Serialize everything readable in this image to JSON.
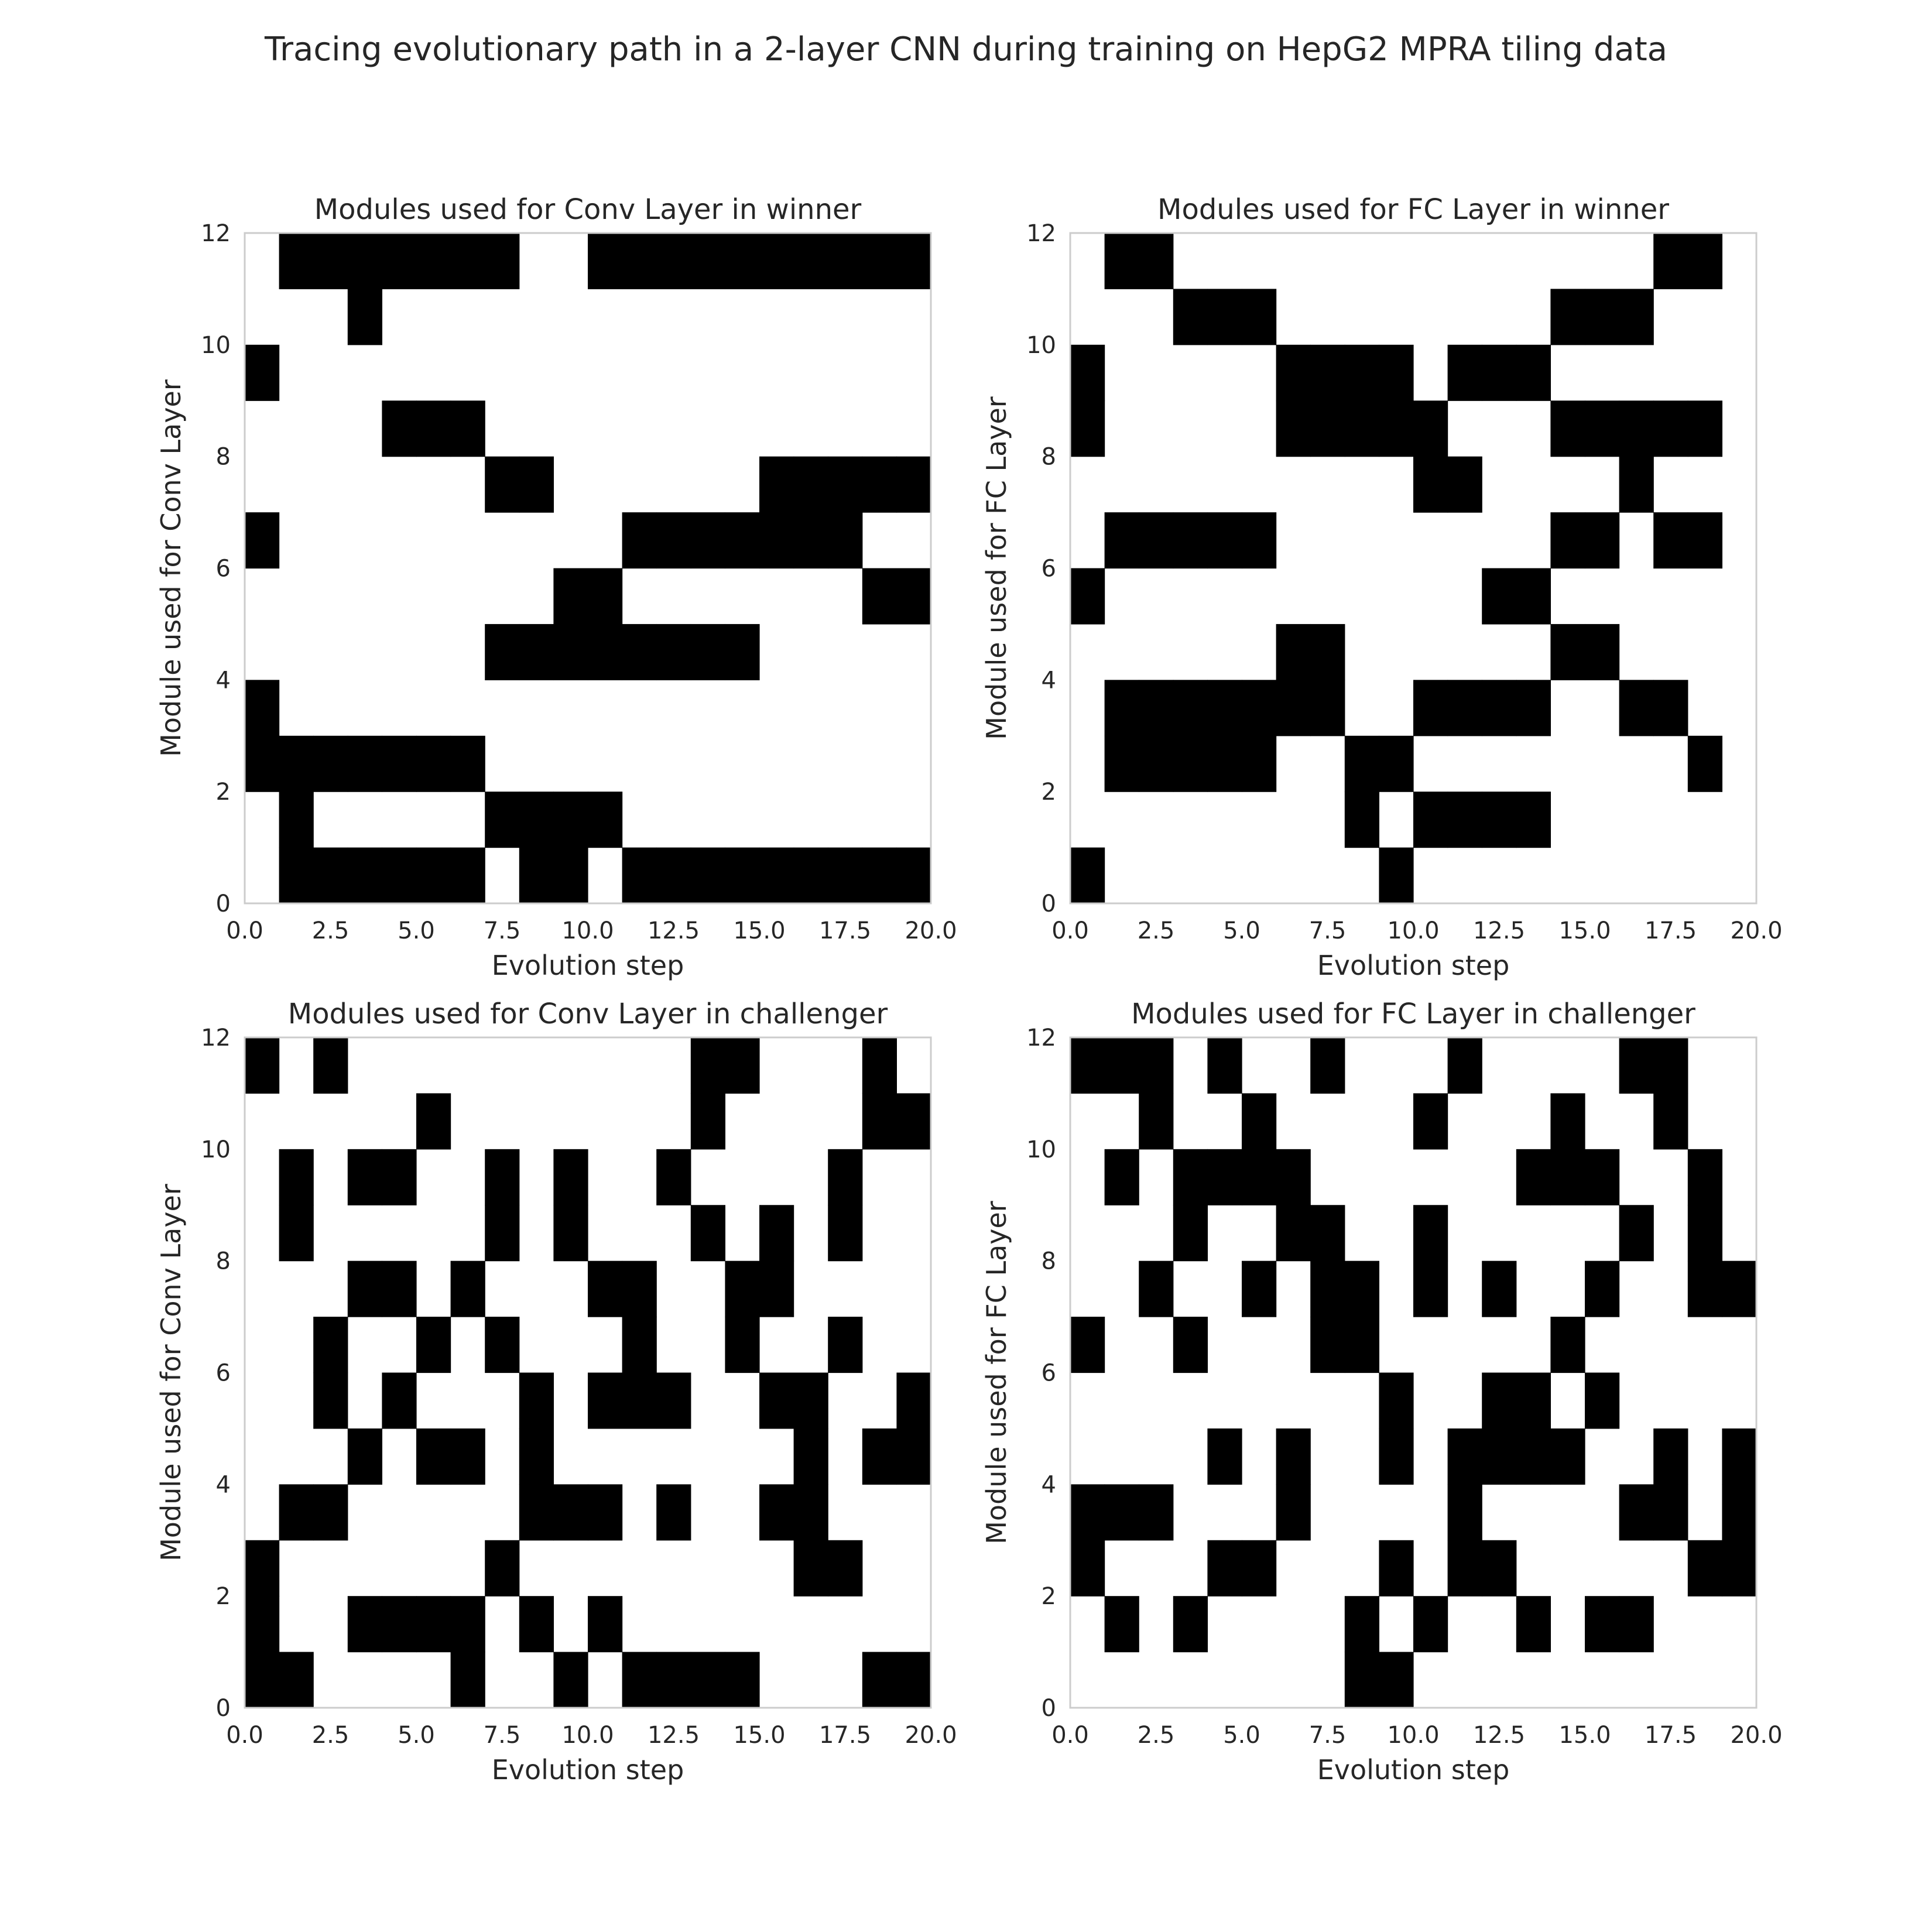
{
  "figure": {
    "title": "Tracing evolutionary path in a 2-layer CNN during training on HepG2 MPRA tiling data"
  },
  "chart_data": [
    {
      "type": "heatmap",
      "title": "Modules used for Conv Layer in winner",
      "xlabel": "Evolution step",
      "ylabel": "Module used for Conv Layer",
      "xlim": [
        0,
        20
      ],
      "ylim": [
        0,
        12
      ],
      "x_ticks": [
        "0.0",
        "2.5",
        "5.0",
        "7.5",
        "10.0",
        "12.5",
        "15.0",
        "17.5",
        "20.0"
      ],
      "y_ticks": [
        "0",
        "2",
        "4",
        "6",
        "8",
        "10",
        "12"
      ],
      "grid": false,
      "colors": {
        "used": "#000000",
        "unused": "#ffffff"
      },
      "cells": [
        [
          0,
          2
        ],
        [
          0,
          3
        ],
        [
          0,
          6
        ],
        [
          0,
          9
        ],
        [
          1,
          0
        ],
        [
          1,
          1
        ],
        [
          1,
          2
        ],
        [
          1,
          11
        ],
        [
          2,
          0
        ],
        [
          2,
          2
        ],
        [
          2,
          11
        ],
        [
          3,
          0
        ],
        [
          3,
          2
        ],
        [
          3,
          10
        ],
        [
          3,
          11
        ],
        [
          4,
          0
        ],
        [
          4,
          2
        ],
        [
          4,
          8
        ],
        [
          4,
          11
        ],
        [
          5,
          0
        ],
        [
          5,
          2
        ],
        [
          5,
          8
        ],
        [
          5,
          11
        ],
        [
          6,
          0
        ],
        [
          6,
          2
        ],
        [
          6,
          8
        ],
        [
          6,
          11
        ],
        [
          7,
          1
        ],
        [
          7,
          4
        ],
        [
          7,
          7
        ],
        [
          7,
          11
        ],
        [
          8,
          0
        ],
        [
          8,
          1
        ],
        [
          8,
          4
        ],
        [
          8,
          7
        ],
        [
          9,
          0
        ],
        [
          9,
          1
        ],
        [
          9,
          4
        ],
        [
          9,
          5
        ],
        [
          10,
          1
        ],
        [
          10,
          4
        ],
        [
          10,
          5
        ],
        [
          10,
          11
        ],
        [
          11,
          0
        ],
        [
          11,
          4
        ],
        [
          11,
          6
        ],
        [
          11,
          11
        ],
        [
          12,
          0
        ],
        [
          12,
          4
        ],
        [
          12,
          6
        ],
        [
          12,
          11
        ],
        [
          13,
          0
        ],
        [
          13,
          4
        ],
        [
          13,
          6
        ],
        [
          13,
          11
        ],
        [
          14,
          0
        ],
        [
          14,
          4
        ],
        [
          14,
          6
        ],
        [
          14,
          11
        ],
        [
          15,
          0
        ],
        [
          15,
          6
        ],
        [
          15,
          7
        ],
        [
          15,
          11
        ],
        [
          16,
          0
        ],
        [
          16,
          6
        ],
        [
          16,
          7
        ],
        [
          16,
          11
        ],
        [
          17,
          0
        ],
        [
          17,
          6
        ],
        [
          17,
          7
        ],
        [
          17,
          11
        ],
        [
          18,
          0
        ],
        [
          18,
          5
        ],
        [
          18,
          7
        ],
        [
          18,
          11
        ],
        [
          19,
          0
        ],
        [
          19,
          5
        ],
        [
          19,
          7
        ],
        [
          19,
          11
        ]
      ]
    },
    {
      "type": "heatmap",
      "title": "Modules used for FC Layer in winner",
      "xlabel": "Evolution step",
      "ylabel": "Module used for FC Layer",
      "xlim": [
        0,
        20
      ],
      "ylim": [
        0,
        12
      ],
      "x_ticks": [
        "0.0",
        "2.5",
        "5.0",
        "7.5",
        "10.0",
        "12.5",
        "15.0",
        "17.5",
        "20.0"
      ],
      "y_ticks": [
        "0",
        "2",
        "4",
        "6",
        "8",
        "10",
        "12"
      ],
      "grid": false,
      "colors": {
        "used": "#000000",
        "unused": "#ffffff"
      },
      "cells": [
        [
          0,
          0
        ],
        [
          0,
          5
        ],
        [
          0,
          8
        ],
        [
          0,
          9
        ],
        [
          1,
          2
        ],
        [
          1,
          3
        ],
        [
          1,
          6
        ],
        [
          1,
          11
        ],
        [
          2,
          2
        ],
        [
          2,
          3
        ],
        [
          2,
          6
        ],
        [
          2,
          11
        ],
        [
          3,
          2
        ],
        [
          3,
          3
        ],
        [
          3,
          6
        ],
        [
          3,
          10
        ],
        [
          4,
          2
        ],
        [
          4,
          3
        ],
        [
          4,
          6
        ],
        [
          4,
          10
        ],
        [
          5,
          2
        ],
        [
          5,
          3
        ],
        [
          5,
          6
        ],
        [
          5,
          10
        ],
        [
          6,
          3
        ],
        [
          6,
          4
        ],
        [
          6,
          8
        ],
        [
          6,
          9
        ],
        [
          7,
          3
        ],
        [
          7,
          4
        ],
        [
          7,
          8
        ],
        [
          7,
          9
        ],
        [
          8,
          1
        ],
        [
          8,
          2
        ],
        [
          8,
          8
        ],
        [
          8,
          9
        ],
        [
          9,
          0
        ],
        [
          9,
          2
        ],
        [
          9,
          8
        ],
        [
          9,
          9
        ],
        [
          10,
          1
        ],
        [
          10,
          3
        ],
        [
          10,
          7
        ],
        [
          10,
          8
        ],
        [
          11,
          1
        ],
        [
          11,
          3
        ],
        [
          11,
          7
        ],
        [
          11,
          9
        ],
        [
          12,
          1
        ],
        [
          12,
          3
        ],
        [
          12,
          5
        ],
        [
          12,
          9
        ],
        [
          13,
          1
        ],
        [
          13,
          3
        ],
        [
          13,
          5
        ],
        [
          13,
          9
        ],
        [
          14,
          4
        ],
        [
          14,
          6
        ],
        [
          14,
          8
        ],
        [
          14,
          10
        ],
        [
          15,
          4
        ],
        [
          15,
          6
        ],
        [
          15,
          8
        ],
        [
          15,
          10
        ],
        [
          16,
          3
        ],
        [
          16,
          7
        ],
        [
          16,
          8
        ],
        [
          16,
          10
        ],
        [
          17,
          3
        ],
        [
          17,
          6
        ],
        [
          17,
          8
        ],
        [
          17,
          11
        ],
        [
          18,
          2
        ],
        [
          18,
          6
        ],
        [
          18,
          8
        ],
        [
          18,
          11
        ]
      ]
    },
    {
      "type": "heatmap",
      "title": "Modules used for Conv Layer in challenger",
      "xlabel": "Evolution step",
      "ylabel": "Module used for Conv Layer",
      "xlim": [
        0,
        20
      ],
      "ylim": [
        0,
        12
      ],
      "x_ticks": [
        "0.0",
        "2.5",
        "5.0",
        "7.5",
        "10.0",
        "12.5",
        "15.0",
        "17.5",
        "20.0"
      ],
      "y_ticks": [
        "0",
        "2",
        "4",
        "6",
        "8",
        "10",
        "12"
      ],
      "grid": false,
      "colors": {
        "used": "#000000",
        "unused": "#ffffff"
      },
      "cells": [
        [
          0,
          0
        ],
        [
          0,
          1
        ],
        [
          0,
          2
        ],
        [
          0,
          11
        ],
        [
          1,
          0
        ],
        [
          1,
          3
        ],
        [
          1,
          8
        ],
        [
          1,
          9
        ],
        [
          2,
          3
        ],
        [
          2,
          5
        ],
        [
          2,
          6
        ],
        [
          2,
          11
        ],
        [
          3,
          1
        ],
        [
          3,
          4
        ],
        [
          3,
          7
        ],
        [
          3,
          9
        ],
        [
          4,
          1
        ],
        [
          4,
          5
        ],
        [
          4,
          7
        ],
        [
          4,
          9
        ],
        [
          5,
          1
        ],
        [
          5,
          4
        ],
        [
          5,
          6
        ],
        [
          5,
          10
        ],
        [
          6,
          0
        ],
        [
          6,
          1
        ],
        [
          6,
          4
        ],
        [
          6,
          7
        ],
        [
          7,
          2
        ],
        [
          7,
          6
        ],
        [
          7,
          8
        ],
        [
          7,
          9
        ],
        [
          8,
          1
        ],
        [
          8,
          3
        ],
        [
          8,
          4
        ],
        [
          8,
          5
        ],
        [
          9,
          0
        ],
        [
          9,
          3
        ],
        [
          9,
          8
        ],
        [
          9,
          9
        ],
        [
          10,
          1
        ],
        [
          10,
          3
        ],
        [
          10,
          5
        ],
        [
          10,
          7
        ],
        [
          11,
          0
        ],
        [
          11,
          5
        ],
        [
          11,
          6
        ],
        [
          11,
          7
        ],
        [
          12,
          0
        ],
        [
          12,
          3
        ],
        [
          12,
          5
        ],
        [
          12,
          9
        ],
        [
          13,
          0
        ],
        [
          13,
          8
        ],
        [
          13,
          10
        ],
        [
          13,
          11
        ],
        [
          14,
          0
        ],
        [
          14,
          6
        ],
        [
          14,
          7
        ],
        [
          14,
          11
        ],
        [
          15,
          3
        ],
        [
          15,
          5
        ],
        [
          15,
          7
        ],
        [
          15,
          8
        ],
        [
          16,
          2
        ],
        [
          16,
          3
        ],
        [
          16,
          4
        ],
        [
          16,
          5
        ],
        [
          17,
          2
        ],
        [
          17,
          6
        ],
        [
          17,
          8
        ],
        [
          17,
          9
        ],
        [
          18,
          0
        ],
        [
          18,
          4
        ],
        [
          18,
          10
        ],
        [
          18,
          11
        ],
        [
          19,
          0
        ],
        [
          19,
          4
        ],
        [
          19,
          5
        ],
        [
          19,
          10
        ]
      ]
    },
    {
      "type": "heatmap",
      "title": "Modules used for FC Layer in challenger",
      "xlabel": "Evolution step",
      "ylabel": "Module used for FC Layer",
      "xlim": [
        0,
        20
      ],
      "ylim": [
        0,
        12
      ],
      "x_ticks": [
        "0.0",
        "2.5",
        "5.0",
        "7.5",
        "10.0",
        "12.5",
        "15.0",
        "17.5",
        "20.0"
      ],
      "y_ticks": [
        "0",
        "2",
        "4",
        "6",
        "8",
        "10",
        "12"
      ],
      "grid": false,
      "colors": {
        "used": "#000000",
        "unused": "#ffffff"
      },
      "cells": [
        [
          0,
          2
        ],
        [
          0,
          3
        ],
        [
          0,
          6
        ],
        [
          0,
          11
        ],
        [
          1,
          1
        ],
        [
          1,
          3
        ],
        [
          1,
          9
        ],
        [
          1,
          11
        ],
        [
          2,
          3
        ],
        [
          2,
          7
        ],
        [
          2,
          10
        ],
        [
          2,
          11
        ],
        [
          3,
          1
        ],
        [
          3,
          6
        ],
        [
          3,
          8
        ],
        [
          3,
          9
        ],
        [
          4,
          2
        ],
        [
          4,
          4
        ],
        [
          4,
          9
        ],
        [
          4,
          11
        ],
        [
          5,
          2
        ],
        [
          5,
          7
        ],
        [
          5,
          9
        ],
        [
          5,
          10
        ],
        [
          6,
          3
        ],
        [
          6,
          4
        ],
        [
          6,
          8
        ],
        [
          6,
          9
        ],
        [
          7,
          6
        ],
        [
          7,
          7
        ],
        [
          7,
          8
        ],
        [
          7,
          11
        ],
        [
          8,
          0
        ],
        [
          8,
          1
        ],
        [
          8,
          6
        ],
        [
          8,
          7
        ],
        [
          9,
          0
        ],
        [
          9,
          2
        ],
        [
          9,
          4
        ],
        [
          9,
          5
        ],
        [
          10,
          1
        ],
        [
          10,
          7
        ],
        [
          10,
          8
        ],
        [
          10,
          10
        ],
        [
          11,
          2
        ],
        [
          11,
          3
        ],
        [
          11,
          4
        ],
        [
          11,
          11
        ],
        [
          12,
          2
        ],
        [
          12,
          4
        ],
        [
          12,
          5
        ],
        [
          12,
          7
        ],
        [
          13,
          1
        ],
        [
          13,
          4
        ],
        [
          13,
          5
        ],
        [
          13,
          9
        ],
        [
          14,
          4
        ],
        [
          14,
          6
        ],
        [
          14,
          9
        ],
        [
          14,
          10
        ],
        [
          15,
          1
        ],
        [
          15,
          5
        ],
        [
          15,
          7
        ],
        [
          15,
          9
        ],
        [
          16,
          1
        ],
        [
          16,
          3
        ],
        [
          16,
          8
        ],
        [
          16,
          11
        ],
        [
          17,
          3
        ],
        [
          17,
          4
        ],
        [
          17,
          10
        ],
        [
          17,
          11
        ],
        [
          18,
          2
        ],
        [
          18,
          7
        ],
        [
          18,
          8
        ],
        [
          18,
          9
        ],
        [
          19,
          2
        ],
        [
          19,
          3
        ],
        [
          19,
          4
        ],
        [
          19,
          7
        ]
      ]
    }
  ]
}
